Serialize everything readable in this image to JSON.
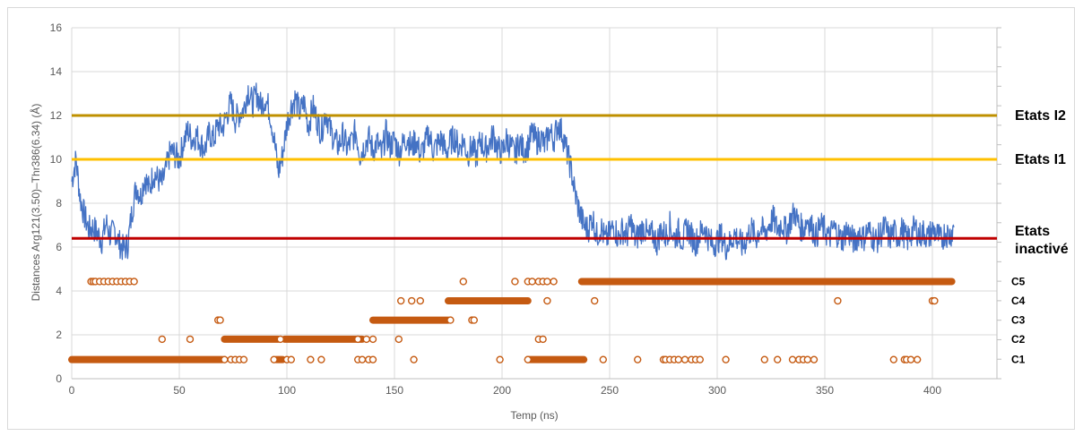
{
  "chart_data": {
    "type": "line",
    "title": "",
    "xlabel": "Temp (ns)",
    "ylabel": "Distances Arg121(3.50)–Thr386(6.34) (Å)",
    "xlim": [
      0,
      430
    ],
    "ylim": [
      0,
      16
    ],
    "x_ticks": [
      0,
      50,
      100,
      150,
      200,
      250,
      300,
      350,
      400
    ],
    "y_ticks": [
      0,
      2,
      4,
      6,
      8,
      10,
      12,
      14,
      16
    ],
    "grid": true,
    "colors": {
      "distance": "#4472c4",
      "clusters": "#c55a11",
      "etats_i2": "#bf9000",
      "etats_i1": "#ffc000",
      "etats_inactive": "#c00000",
      "grid": "#d9d9d9"
    },
    "reference_lines": [
      {
        "name": "Etats I2",
        "y": 12.0,
        "color": "#bf9000"
      },
      {
        "name": "Etats I1",
        "y": 10.0,
        "color": "#ffc000"
      },
      {
        "name": "Etats inactivé",
        "y": 6.4,
        "color": "#c00000"
      }
    ],
    "distance_series": {
      "x": [
        0,
        2,
        4,
        6,
        8,
        10,
        12,
        14,
        16,
        18,
        20,
        22,
        24,
        26,
        28,
        30,
        32,
        34,
        36,
        38,
        40,
        42,
        44,
        46,
        48,
        50,
        52,
        54,
        56,
        58,
        60,
        62,
        64,
        66,
        68,
        70,
        72,
        74,
        76,
        78,
        80,
        82,
        84,
        86,
        88,
        90,
        92,
        94,
        96,
        98,
        100,
        102,
        104,
        106,
        108,
        110,
        112,
        114,
        116,
        118,
        120,
        122,
        124,
        126,
        128,
        130,
        132,
        134,
        136,
        138,
        140,
        142,
        144,
        146,
        148,
        150,
        152,
        154,
        156,
        158,
        160,
        162,
        164,
        166,
        168,
        170,
        172,
        174,
        176,
        178,
        180,
        182,
        184,
        186,
        188,
        190,
        192,
        194,
        196,
        198,
        200,
        202,
        204,
        206,
        208,
        210,
        212,
        214,
        216,
        218,
        220,
        222,
        224,
        226,
        228,
        230,
        232,
        234,
        236,
        238,
        240,
        242,
        244,
        246,
        248,
        250,
        252,
        254,
        256,
        258,
        260,
        262,
        264,
        266,
        268,
        270,
        272,
        274,
        276,
        278,
        280,
        282,
        284,
        286,
        288,
        290,
        292,
        294,
        296,
        298,
        300,
        302,
        304,
        306,
        308,
        310,
        312,
        314,
        316,
        318,
        320,
        322,
        324,
        326,
        328,
        330,
        332,
        334,
        336,
        338,
        340,
        342,
        344,
        346,
        348,
        350,
        352,
        354,
        356,
        358,
        360,
        362,
        364,
        366,
        368,
        370,
        372,
        374,
        376,
        378,
        380,
        382,
        384,
        386,
        388,
        390,
        392,
        394,
        396,
        398,
        400,
        402,
        404,
        406,
        408,
        410
      ],
      "y": [
        9.0,
        10.0,
        8.2,
        7.4,
        6.8,
        6.9,
        6.6,
        6.3,
        7.1,
        6.5,
        6.8,
        6.2,
        5.9,
        6.1,
        7.6,
        8.8,
        8.3,
        9.2,
        8.6,
        9.4,
        9.1,
        8.9,
        9.6,
        10.4,
        10.2,
        10.0,
        10.8,
        11.3,
        10.9,
        11.1,
        10.7,
        10.5,
        11.2,
        10.9,
        11.6,
        11.4,
        12.0,
        12.6,
        11.8,
        12.1,
        12.3,
        13.2,
        12.5,
        13.0,
        12.4,
        12.8,
        12.2,
        11.0,
        9.4,
        10.2,
        11.6,
        12.4,
        12.8,
        12.1,
        12.6,
        11.5,
        12.4,
        11.8,
        11.2,
        12.2,
        11.4,
        10.9,
        10.6,
        11.1,
        10.5,
        10.8,
        11.3,
        10.2,
        10.6,
        11.0,
        10.4,
        10.8,
        10.2,
        11.2,
        10.6,
        10.9,
        10.3,
        10.7,
        11.0,
        10.5,
        10.9,
        10.2,
        10.6,
        11.2,
        10.4,
        10.7,
        10.9,
        10.3,
        10.8,
        11.0,
        10.5,
        10.9,
        10.2,
        10.6,
        10.1,
        10.9,
        10.4,
        10.7,
        11.1,
        10.5,
        10.3,
        10.9,
        10.6,
        10.2,
        10.8,
        10.4,
        10.6,
        11.2,
        10.8,
        11.0,
        10.6,
        11.3,
        10.9,
        11.6,
        11.2,
        10.4,
        9.6,
        8.4,
        7.6,
        7.0,
        6.8,
        7.4,
        6.5,
        6.9,
        6.3,
        6.6,
        7.0,
        6.4,
        6.8,
        6.5,
        7.1,
        6.3,
        6.7,
        6.9,
        6.4,
        6.6,
        6.2,
        6.8,
        6.5,
        7.0,
        6.4,
        6.7,
        6.3,
        6.9,
        6.5,
        6.2,
        6.6,
        6.9,
        6.4,
        6.1,
        6.3,
        6.5,
        6.0,
        6.2,
        6.6,
        6.3,
        6.0,
        6.5,
        6.8,
        6.4,
        6.9,
        6.6,
        7.0,
        7.3,
        6.8,
        7.1,
        6.7,
        7.2,
        7.6,
        7.0,
        6.8,
        7.3,
        6.9,
        6.5,
        7.0,
        6.8,
        6.4,
        6.9,
        6.6,
        6.3,
        6.8,
        6.5,
        6.2,
        6.7,
        6.4,
        6.8,
        6.5,
        6.3,
        6.6,
        6.9,
        6.4,
        6.7,
        6.5,
        6.8,
        6.3,
        6.6,
        6.9,
        6.5,
        6.7,
        6.4,
        6.8,
        6.6,
        6.3,
        6.7,
        6.5,
        6.9
      ]
    },
    "cluster_series": {
      "categories": [
        "C1",
        "C2",
        "C3",
        "C4",
        "C5"
      ],
      "y_positions": [
        0.87,
        1.8,
        2.67,
        3.55,
        4.43
      ],
      "dense_segments": [
        {
          "cluster": "C1",
          "from": 0,
          "to": 70
        },
        {
          "cluster": "C1",
          "from": 95,
          "to": 98
        },
        {
          "cluster": "C1",
          "from": 212,
          "to": 238
        },
        {
          "cluster": "C2",
          "from": 71,
          "to": 96
        },
        {
          "cluster": "C2",
          "from": 99,
          "to": 135
        },
        {
          "cluster": "C3",
          "from": 140,
          "to": 175
        },
        {
          "cluster": "C4",
          "from": 175,
          "to": 212
        },
        {
          "cluster": "C5",
          "from": 237,
          "to": 409
        }
      ],
      "scatter_points": [
        {
          "cluster": "C1",
          "x": [
            71,
            74,
            76,
            78,
            80,
            94,
            100,
            102,
            111,
            116,
            133,
            135,
            138,
            140,
            159,
            199,
            212,
            247,
            263,
            275,
            276,
            278,
            280,
            282,
            285,
            288,
            290,
            292,
            304,
            322,
            328,
            335,
            338,
            340,
            342,
            345,
            382,
            387,
            388,
            390,
            393
          ]
        },
        {
          "cluster": "C2",
          "x": [
            42,
            55,
            97,
            133,
            137,
            140,
            152,
            217,
            219
          ]
        },
        {
          "cluster": "C3",
          "x": [
            68,
            69,
            176,
            186,
            187
          ]
        },
        {
          "cluster": "C4",
          "x": [
            153,
            158,
            162,
            221,
            243,
            356,
            400,
            401
          ]
        },
        {
          "cluster": "C5",
          "x": [
            9,
            10,
            11,
            13,
            15,
            17,
            19,
            21,
            23,
            25,
            27,
            29,
            182,
            206,
            212,
            214,
            217,
            219,
            221,
            224
          ]
        }
      ]
    }
  }
}
